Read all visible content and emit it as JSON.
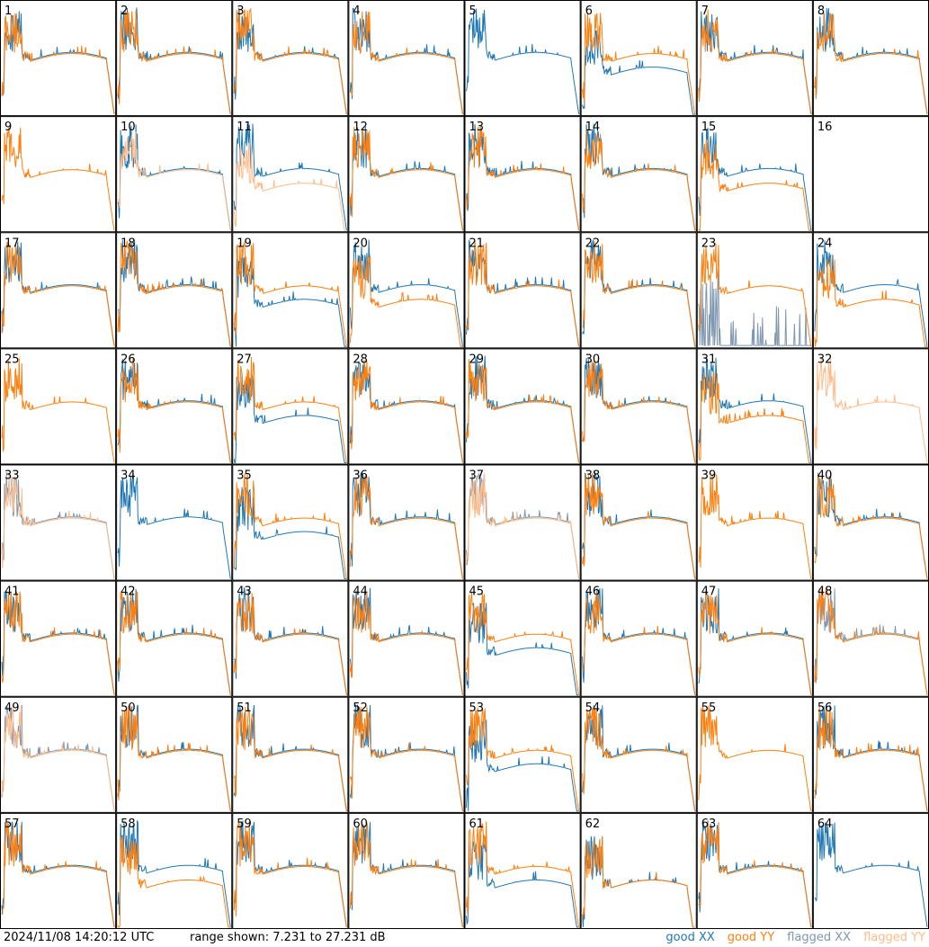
{
  "footer": {
    "timestamp": "2024/11/08 14:20:12 UTC",
    "range_text": "range shown: 7.231 to 27.231 dB",
    "legend": {
      "good_xx": "good XX",
      "good_yy": "good YY",
      "flagged_xx": "flagged XX",
      "flagged_yy": "flagged YY"
    }
  },
  "colors": {
    "good_xx": "#1f77b4",
    "good_yy": "#ff7f0e",
    "flagged_xx": "#7f97b0",
    "flagged_yy": "#ffbb88"
  },
  "chart_data": {
    "type": "line",
    "panels": 64,
    "ylim": [
      7.231,
      27.231
    ],
    "panel_labels": [
      "1",
      "2",
      "3",
      "4",
      "5",
      "6",
      "7",
      "8",
      "9",
      "10",
      "11",
      "12",
      "13",
      "14",
      "15",
      "16",
      "17",
      "18",
      "19",
      "20",
      "21",
      "22",
      "23",
      "24",
      "25",
      "26",
      "27",
      "28",
      "29",
      "30",
      "31",
      "32",
      "33",
      "34",
      "35",
      "36",
      "37",
      "38",
      "39",
      "40",
      "41",
      "42",
      "43",
      "44",
      "45",
      "46",
      "47",
      "48",
      "49",
      "50",
      "51",
      "52",
      "53",
      "54",
      "55",
      "56",
      "57",
      "58",
      "59",
      "60",
      "61",
      "62",
      "63",
      "64"
    ],
    "legend_placement": "bottom-right",
    "flagged_xx_panels": [
      23,
      33,
      37,
      48,
      49
    ],
    "flagged_yy_panels": [
      10,
      11,
      32,
      33,
      37,
      49
    ],
    "missing_xx_panels": [
      9,
      16,
      25,
      32,
      39,
      55
    ],
    "missing_yy_panels": [
      5,
      16,
      34,
      64
    ],
    "spiky_xx_panels": [
      9,
      23,
      39,
      55
    ],
    "xx_lower_panels": [
      6,
      19,
      27,
      35,
      45,
      53,
      61,
      62
    ],
    "yy_lower_panels": [
      11,
      15,
      20,
      24,
      31,
      58,
      62
    ]
  }
}
